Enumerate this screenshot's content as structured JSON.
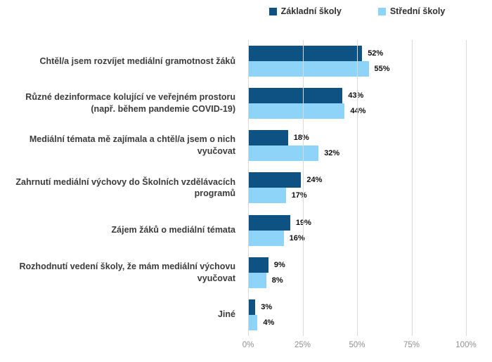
{
  "chart_data": {
    "type": "bar",
    "orientation": "horizontal",
    "title": "",
    "categories": [
      "Chtěl/a jsem rozvíjet mediální gramotnost žáků",
      "Různé dezinformace kolující ve veřejném prostoru (např. během pandemie COVID-19)",
      "Mediální témata mě zajímala a chtěl/a jsem o nich vyučovat",
      "Zahrnutí mediální výchovy do Školních vzdělávacích programů",
      "Zájem žáků o mediální témata",
      "Rozhodnutí vedení školy, že mám mediální výchovu vyučovat",
      "Jiné"
    ],
    "series": [
      {
        "name": "Základní školy",
        "color": "#0e5284",
        "values": [
          52,
          43,
          18,
          24,
          19,
          9,
          3
        ]
      },
      {
        "name": "Střední školy",
        "color": "#8ed3f8",
        "values": [
          55,
          44,
          32,
          17,
          16,
          8,
          4
        ]
      }
    ],
    "value_suffix": "%",
    "x_ticks": [
      "0%",
      "25%",
      "50%",
      "75%",
      "100%"
    ],
    "xlim": [
      0,
      100
    ],
    "grid": "vertical",
    "legend_position": "top",
    "data_labels": true
  },
  "colors": {
    "gridline": "#d9d9d9",
    "tick_text": "#8f8f8f",
    "category_text": "#3b3b3b",
    "value_text": "#0d0d0d",
    "background": "#ffffff"
  }
}
